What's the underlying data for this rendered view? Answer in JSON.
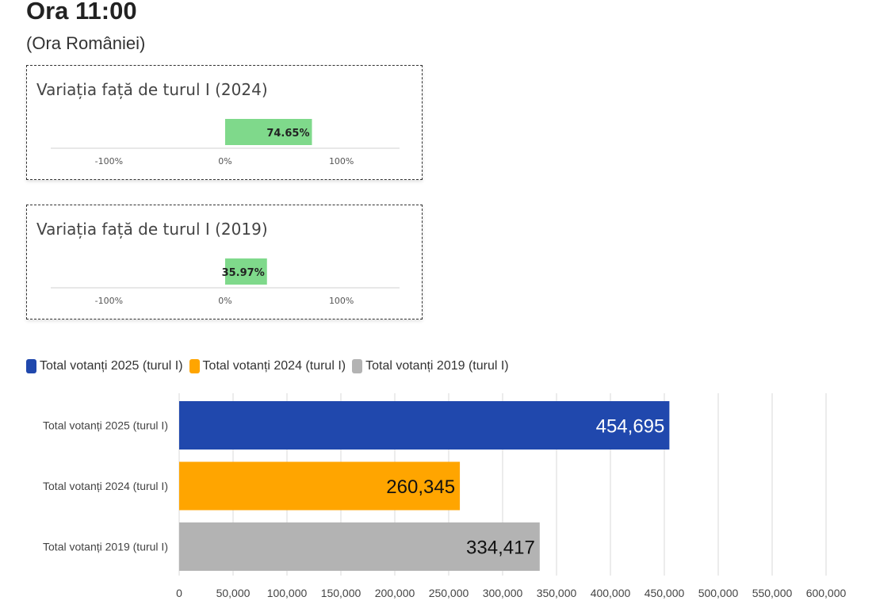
{
  "header": {
    "title": "Ora 11:00",
    "subtitle": "(Ora României)"
  },
  "colors": {
    "positive_bar": "#7fd98b",
    "series_2025": "#2048ad",
    "series_2024": "#ffa500",
    "series_2019": "#b3b3b3"
  },
  "chart_data": [
    {
      "type": "bar",
      "orientation": "horizontal",
      "title": "Variația față de turul I (2024)",
      "values": [
        74.65
      ],
      "value_label": "74.65%",
      "xlim": [
        -150,
        150
      ],
      "ticks": [
        -100,
        0,
        100
      ],
      "tick_labels": [
        "-100%",
        "0%",
        "100%"
      ]
    },
    {
      "type": "bar",
      "orientation": "horizontal",
      "title": "Variația față de turul I (2019)",
      "values": [
        35.97
      ],
      "value_label": "35.97%",
      "xlim": [
        -150,
        150
      ],
      "ticks": [
        -100,
        0,
        100
      ],
      "tick_labels": [
        "-100%",
        "0%",
        "100%"
      ]
    },
    {
      "type": "bar",
      "orientation": "horizontal",
      "categories": [
        "Total votanți 2025 (turul I)",
        "Total votanți 2024 (turul I)",
        "Total votanți 2019 (turul I)"
      ],
      "values": [
        454695,
        260345,
        334417
      ],
      "value_labels": [
        "454,695",
        "260,345",
        "334,417"
      ],
      "legend": [
        "Total votanți 2025 (turul I)",
        "Total votanți 2024 (turul I)",
        "Total votanți 2019 (turul I)"
      ],
      "legend_position": "top-left",
      "xlim": [
        0,
        600000
      ],
      "ticks": [
        0,
        50000,
        100000,
        150000,
        200000,
        250000,
        300000,
        350000,
        400000,
        450000,
        500000,
        550000,
        600000
      ],
      "tick_labels": [
        "0",
        "50,000",
        "100,000",
        "150,000",
        "200,000",
        "250,000",
        "300,000",
        "350,000",
        "400,000",
        "450,000",
        "500,000",
        "550,000",
        "600,000"
      ],
      "grid": true
    }
  ]
}
